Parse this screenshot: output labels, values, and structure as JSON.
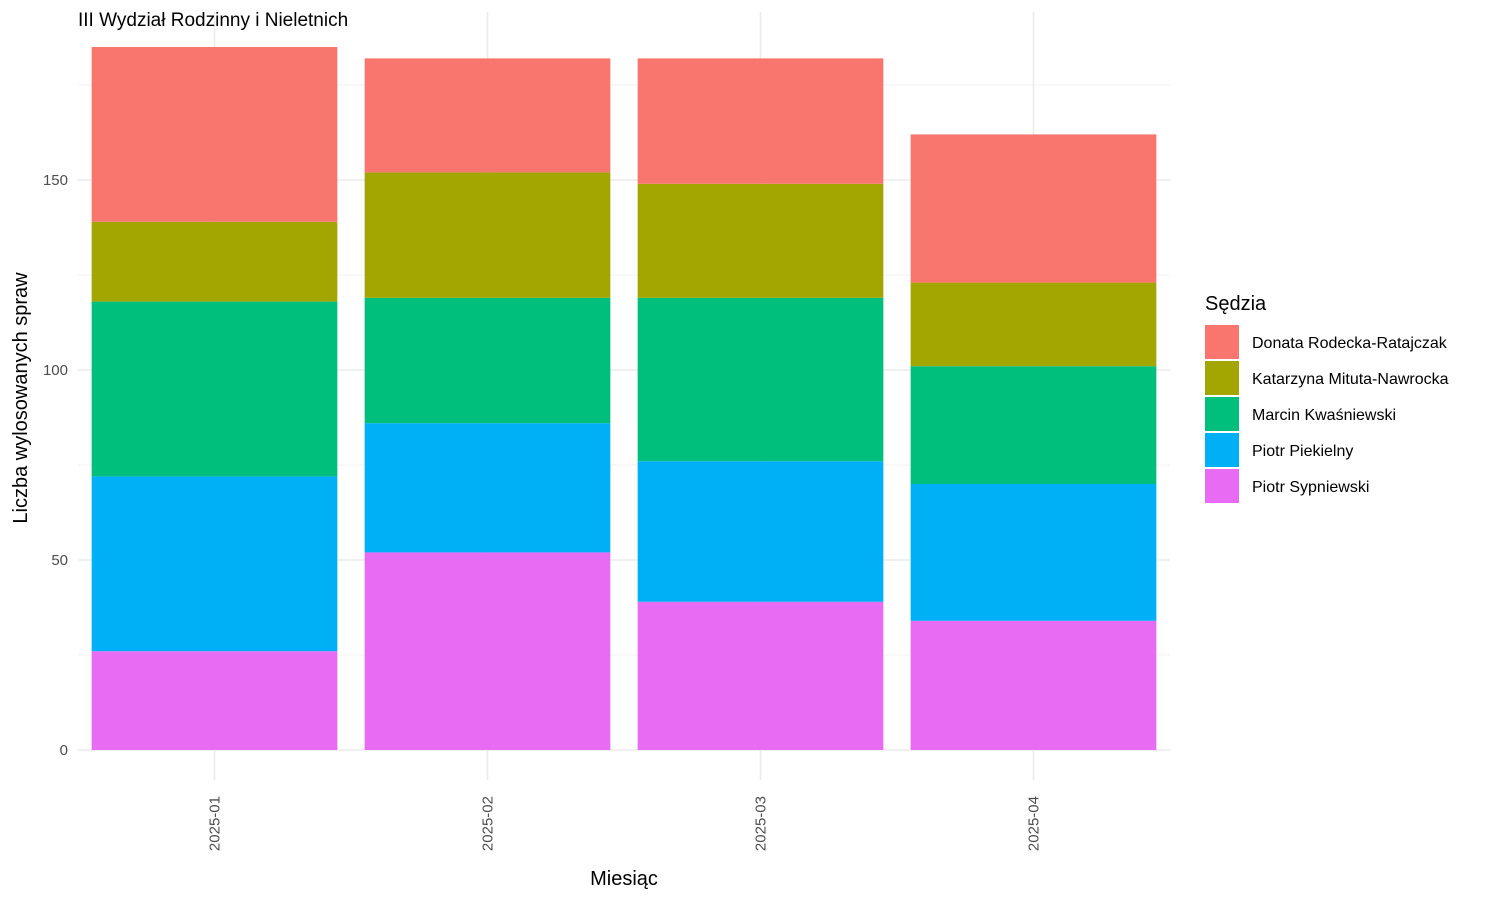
{
  "chart_data": {
    "type": "bar",
    "stacked": true,
    "title": "III Wydział Rodzinny i Nieletnich",
    "xlabel": "Miesiąc",
    "ylabel": "Liczba wylosowanych spraw",
    "ylim": [
      0,
      195
    ],
    "yticks": [
      0,
      50,
      100,
      150
    ],
    "grid": true,
    "legend_title": "Sędzia",
    "legend_position": "right",
    "categories": [
      "2025-01",
      "2025-02",
      "2025-03",
      "2025-04"
    ],
    "series": [
      {
        "name": "Piotr Sypniewski",
        "color": "#E76BF3",
        "values": [
          26,
          52,
          39,
          34
        ]
      },
      {
        "name": "Piotr Piekielny",
        "color": "#00B0F6",
        "values": [
          46,
          34,
          37,
          36
        ]
      },
      {
        "name": "Marcin Kwaśniewski",
        "color": "#00BF7D",
        "values": [
          46,
          33,
          43,
          31
        ]
      },
      {
        "name": "Katarzyna Mituta-Nawrocka",
        "color": "#A3A500",
        "values": [
          21,
          33,
          30,
          22
        ]
      },
      {
        "name": "Donata Rodecka-Ratajczak",
        "color": "#F8766D",
        "values": [
          46,
          30,
          33,
          39
        ]
      }
    ],
    "legend_order": [
      "Donata Rodecka-Ratajczak",
      "Katarzyna Mituta-Nawrocka",
      "Marcin Kwaśniewski",
      "Piotr Piekielny",
      "Piotr Sypniewski"
    ]
  }
}
